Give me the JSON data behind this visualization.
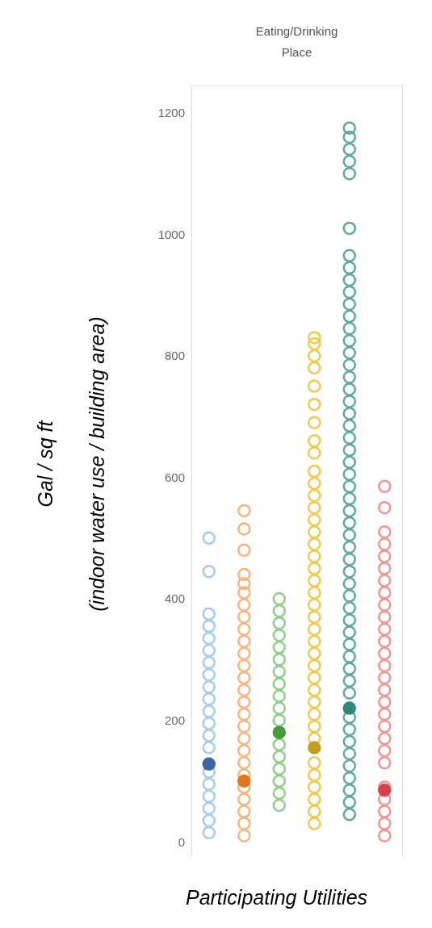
{
  "chart_data": {
    "type": "scatter",
    "title": "Eating/Drinking Place",
    "xlabel": "Participating Utilities",
    "ylabel": "Gal / sq ft\n(indoor water use / building area)",
    "categories": [
      null,
      null,
      null,
      null,
      null,
      null
    ],
    "ylim": [
      -25,
      1245
    ],
    "yticks": [
      0,
      200,
      400,
      600,
      800,
      1000,
      1200
    ],
    "tick_labels": "y",
    "grid": false,
    "legend": false,
    "marker": "circle",
    "series": [
      {
        "colors": [
          "#a8cbea",
          "#f8b47c",
          "#8ccf86",
          "#f3c94a",
          "#5eaaa0",
          "#f59292"
        ],
        "values": [
          15,
          10,
          60,
          30,
          45,
          10
        ]
      },
      {
        "colors": [
          "#a8cbea",
          "#f8b47c",
          "#8ccf86",
          "#f3c94a",
          "#5eaaa0",
          "#f59292"
        ],
        "values": [
          35,
          30,
          80,
          50,
          65,
          30
        ]
      },
      {
        "colors": [
          "#a8cbea",
          "#f8b47c",
          "#8ccf86",
          "#f3c94a",
          "#5eaaa0",
          "#f59292"
        ],
        "values": [
          55,
          50,
          100,
          70,
          85,
          50
        ]
      },
      {
        "colors": [
          "#a8cbea",
          "#f8b47c",
          "#8ccf86",
          "#f3c94a",
          "#5eaaa0",
          "#f59292"
        ],
        "values": [
          75,
          70,
          120,
          90,
          105,
          70
        ]
      },
      {
        "colors": [
          "#a8cbea",
          "#f8b47c",
          "#8ccf86",
          "#f3c94a",
          "#5eaaa0",
          "#f59292"
        ],
        "values": [
          95,
          90,
          140,
          110,
          125,
          90
        ]
      },
      {
        "colors": [
          "#a8cbea",
          "#f8b47c",
          "#8ccf86",
          "#f3c94a",
          "#5eaaa0",
          "#f59292"
        ],
        "values": [
          115,
          110,
          160,
          130,
          145,
          null
        ]
      },
      {
        "colors": [
          "#a8cbea",
          "#f8b47c",
          "#8ccf86",
          "#f3c94a",
          "#5eaaa0",
          "#f59292"
        ],
        "values": [
          null,
          130,
          null,
          null,
          165,
          130
        ]
      },
      {
        "colors": [
          "#a8cbea",
          "#f8b47c",
          "#8ccf86",
          "#f3c94a",
          "#5eaaa0",
          "#f59292"
        ],
        "values": [
          155,
          150,
          200,
          170,
          185,
          150
        ]
      },
      {
        "colors": [
          "#a8cbea",
          "#f8b47c",
          "#8ccf86",
          "#f3c94a",
          "#5eaaa0",
          "#f59292"
        ],
        "values": [
          175,
          170,
          220,
          190,
          205,
          170
        ]
      },
      {
        "colors": [
          "#a8cbea",
          "#f8b47c",
          "#8ccf86",
          "#f3c94a",
          "#5eaaa0",
          "#f59292"
        ],
        "values": [
          195,
          190,
          240,
          210,
          null,
          190
        ]
      },
      {
        "colors": [
          "#a8cbea",
          "#f8b47c",
          "#8ccf86",
          "#f3c94a",
          "#5eaaa0",
          "#f59292"
        ],
        "values": [
          215,
          210,
          260,
          230,
          245,
          210
        ]
      },
      {
        "colors": [
          "#a8cbea",
          "#f8b47c",
          "#8ccf86",
          "#f3c94a",
          "#5eaaa0",
          "#f59292"
        ],
        "values": [
          235,
          230,
          280,
          250,
          265,
          230
        ]
      },
      {
        "colors": [
          "#a8cbea",
          "#f8b47c",
          "#8ccf86",
          "#f3c94a",
          "#5eaaa0",
          "#f59292"
        ],
        "values": [
          255,
          250,
          300,
          270,
          285,
          250
        ]
      },
      {
        "colors": [
          "#a8cbea",
          "#f8b47c",
          "#8ccf86",
          "#f3c94a",
          "#5eaaa0",
          "#f59292"
        ],
        "values": [
          275,
          270,
          320,
          290,
          305,
          270
        ]
      },
      {
        "colors": [
          "#a8cbea",
          "#f8b47c",
          "#8ccf86",
          "#f3c94a",
          "#5eaaa0",
          "#f59292"
        ],
        "values": [
          295,
          290,
          340,
          310,
          325,
          290
        ]
      },
      {
        "colors": [
          "#a8cbea",
          "#f8b47c",
          "#8ccf86",
          "#f3c94a",
          "#5eaaa0",
          "#f59292"
        ],
        "values": [
          315,
          310,
          360,
          330,
          345,
          310
        ]
      },
      {
        "colors": [
          "#a8cbea",
          "#f8b47c",
          "#8ccf86",
          "#f3c94a",
          "#5eaaa0",
          "#f59292"
        ],
        "values": [
          335,
          330,
          380,
          350,
          365,
          330
        ]
      },
      {
        "colors": [
          "#a8cbea",
          "#f8b47c",
          "#8ccf86",
          "#f3c94a",
          "#5eaaa0",
          "#f59292"
        ],
        "values": [
          355,
          350,
          400,
          370,
          385,
          350
        ]
      },
      {
        "colors": [
          "#a8cbea",
          "#f8b47c",
          "#8ccf86",
          "#f3c94a",
          "#5eaaa0",
          "#f59292"
        ],
        "values": [
          375,
          370,
          null,
          390,
          405,
          370
        ]
      },
      {
        "colors": [
          "#a8cbea",
          "#f8b47c",
          "#8ccf86",
          "#f3c94a",
          "#5eaaa0",
          "#f59292"
        ],
        "values": [
          445,
          390,
          null,
          410,
          425,
          390
        ]
      },
      {
        "colors": [
          "#a8cbea",
          "#f8b47c",
          "#8ccf86",
          "#f3c94a",
          "#5eaaa0",
          "#f59292"
        ],
        "values": [
          500,
          410,
          null,
          430,
          445,
          410
        ]
      },
      {
        "colors": [
          "#a8cbea",
          "#f8b47c",
          "#8ccf86",
          "#f3c94a",
          "#5eaaa0",
          "#f59292"
        ],
        "values": [
          null,
          425,
          null,
          450,
          465,
          430
        ]
      },
      {
        "colors": [
          "#a8cbea",
          "#f8b47c",
          "#8ccf86",
          "#f3c94a",
          "#5eaaa0",
          "#f59292"
        ],
        "values": [
          null,
          440,
          null,
          470,
          485,
          450
        ]
      },
      {
        "colors": [
          "#a8cbea",
          "#f8b47c",
          "#8ccf86",
          "#f3c94a",
          "#5eaaa0",
          "#f59292"
        ],
        "values": [
          null,
          480,
          null,
          490,
          505,
          470
        ]
      },
      {
        "colors": [
          "#a8cbea",
          "#f8b47c",
          "#8ccf86",
          "#f3c94a",
          "#5eaaa0",
          "#f59292"
        ],
        "values": [
          null,
          515,
          null,
          510,
          525,
          490
        ]
      },
      {
        "colors": [
          "#a8cbea",
          "#f8b47c",
          "#8ccf86",
          "#f3c94a",
          "#5eaaa0",
          "#f59292"
        ],
        "values": [
          null,
          545,
          null,
          530,
          545,
          510
        ]
      },
      {
        "colors": [
          "#a8cbea",
          "#f8b47c",
          "#8ccf86",
          "#f3c94a",
          "#5eaaa0",
          "#f59292"
        ],
        "values": [
          null,
          null,
          null,
          550,
          565,
          550
        ]
      },
      {
        "colors": [
          "#a8cbea",
          "#f8b47c",
          "#8ccf86",
          "#f3c94a",
          "#5eaaa0",
          "#f59292"
        ],
        "values": [
          null,
          null,
          null,
          570,
          585,
          585
        ]
      },
      {
        "colors": [
          "#a8cbea",
          "#f8b47c",
          "#8ccf86",
          "#f3c94a",
          "#5eaaa0",
          "#f59292"
        ],
        "values": [
          null,
          null,
          null,
          590,
          605,
          null
        ]
      },
      {
        "colors": [
          "#a8cbea",
          "#f8b47c",
          "#8ccf86",
          "#f3c94a",
          "#5eaaa0",
          "#f59292"
        ],
        "values": [
          null,
          null,
          null,
          610,
          625,
          null
        ]
      },
      {
        "colors": [
          "#a8cbea",
          "#f8b47c",
          "#8ccf86",
          "#f3c94a",
          "#5eaaa0",
          "#f59292"
        ],
        "values": [
          null,
          null,
          null,
          640,
          645,
          null
        ]
      },
      {
        "colors": [
          "#a8cbea",
          "#f8b47c",
          "#8ccf86",
          "#f3c94a",
          "#5eaaa0",
          "#f59292"
        ],
        "values": [
          null,
          null,
          null,
          660,
          665,
          null
        ]
      },
      {
        "colors": [
          "#a8cbea",
          "#f8b47c",
          "#8ccf86",
          "#f3c94a",
          "#5eaaa0",
          "#f59292"
        ],
        "values": [
          null,
          null,
          null,
          690,
          685,
          null
        ]
      },
      {
        "colors": [
          "#a8cbea",
          "#f8b47c",
          "#8ccf86",
          "#f3c94a",
          "#5eaaa0",
          "#f59292"
        ],
        "values": [
          null,
          null,
          null,
          720,
          705,
          null
        ]
      },
      {
        "colors": [
          "#a8cbea",
          "#f8b47c",
          "#8ccf86",
          "#f3c94a",
          "#5eaaa0",
          "#f59292"
        ],
        "values": [
          null,
          null,
          null,
          750,
          725,
          null
        ]
      },
      {
        "colors": [
          "#a8cbea",
          "#f8b47c",
          "#8ccf86",
          "#f3c94a",
          "#5eaaa0",
          "#f59292"
        ],
        "values": [
          null,
          null,
          null,
          780,
          745,
          null
        ]
      },
      {
        "colors": [
          "#a8cbea",
          "#f8b47c",
          "#8ccf86",
          "#f3c94a",
          "#5eaaa0",
          "#f59292"
        ],
        "values": [
          null,
          null,
          null,
          800,
          765,
          null
        ]
      },
      {
        "colors": [
          "#a8cbea",
          "#f8b47c",
          "#8ccf86",
          "#f3c94a",
          "#5eaaa0",
          "#f59292"
        ],
        "values": [
          null,
          null,
          null,
          820,
          785,
          null
        ]
      },
      {
        "colors": [
          "#a8cbea",
          "#f8b47c",
          "#8ccf86",
          "#f3c94a",
          "#5eaaa0",
          "#f59292"
        ],
        "values": [
          null,
          null,
          null,
          830,
          805,
          null
        ]
      },
      {
        "colors": [
          "#a8cbea",
          "#f8b47c",
          "#8ccf86",
          "#f3c94a",
          "#5eaaa0",
          "#f59292"
        ],
        "values": [
          null,
          null,
          null,
          null,
          825,
          null
        ]
      },
      {
        "colors": [
          "#a8cbea",
          "#f8b47c",
          "#8ccf86",
          "#f3c94a",
          "#5eaaa0",
          "#f59292"
        ],
        "values": [
          null,
          null,
          null,
          null,
          845,
          null
        ]
      },
      {
        "colors": [
          "#a8cbea",
          "#f8b47c",
          "#8ccf86",
          "#f3c94a",
          "#5eaaa0",
          "#f59292"
        ],
        "values": [
          null,
          null,
          null,
          null,
          865,
          null
        ]
      },
      {
        "colors": [
          "#a8cbea",
          "#f8b47c",
          "#8ccf86",
          "#f3c94a",
          "#5eaaa0",
          "#f59292"
        ],
        "values": [
          null,
          null,
          null,
          null,
          885,
          null
        ]
      },
      {
        "colors": [
          "#a8cbea",
          "#f8b47c",
          "#8ccf86",
          "#f3c94a",
          "#5eaaa0",
          "#f59292"
        ],
        "values": [
          null,
          null,
          null,
          null,
          905,
          null
        ]
      },
      {
        "colors": [
          "#a8cbea",
          "#f8b47c",
          "#8ccf86",
          "#f3c94a",
          "#5eaaa0",
          "#f59292"
        ],
        "values": [
          null,
          null,
          null,
          null,
          925,
          null
        ]
      },
      {
        "colors": [
          "#a8cbea",
          "#f8b47c",
          "#8ccf86",
          "#f3c94a",
          "#5eaaa0",
          "#f59292"
        ],
        "values": [
          null,
          null,
          null,
          null,
          945,
          null
        ]
      },
      {
        "colors": [
          "#a8cbea",
          "#f8b47c",
          "#8ccf86",
          "#f3c94a",
          "#5eaaa0",
          "#f59292"
        ],
        "values": [
          null,
          null,
          null,
          null,
          965,
          null
        ]
      },
      {
        "colors": [
          "#a8cbea",
          "#f8b47c",
          "#8ccf86",
          "#f3c94a",
          "#5eaaa0",
          "#f59292"
        ],
        "values": [
          null,
          null,
          null,
          null,
          1010,
          null
        ]
      },
      {
        "colors": [
          "#a8cbea",
          "#f8b47c",
          "#8ccf86",
          "#f3c94a",
          "#5eaaa0",
          "#f59292"
        ],
        "values": [
          null,
          null,
          null,
          null,
          1100,
          null
        ]
      },
      {
        "colors": [
          "#a8cbea",
          "#f8b47c",
          "#8ccf86",
          "#f3c94a",
          "#5eaaa0",
          "#f59292"
        ],
        "values": [
          null,
          null,
          null,
          null,
          1120,
          null
        ]
      },
      {
        "colors": [
          "#a8cbea",
          "#f8b47c",
          "#8ccf86",
          "#f3c94a",
          "#5eaaa0",
          "#f59292"
        ],
        "values": [
          null,
          null,
          null,
          null,
          1140,
          null
        ]
      },
      {
        "colors": [
          "#a8cbea",
          "#f8b47c",
          "#8ccf86",
          "#f3c94a",
          "#5eaaa0",
          "#f59292"
        ],
        "values": [
          null,
          null,
          null,
          null,
          1160,
          null
        ]
      },
      {
        "colors": [
          "#a8cbea",
          "#f8b47c",
          "#8ccf86",
          "#f3c94a",
          "#5eaaa0",
          "#f59292"
        ],
        "values": [
          null,
          null,
          null,
          null,
          1175,
          null
        ]
      },
      {
        "marker": "circle",
        "colors": [
          "#3d67a3",
          "#e07a1c",
          "#4a9a3e",
          "#c39f1c",
          "#2e877b",
          "#d8404c"
        ],
        "values": [
          128,
          100,
          180,
          155,
          220,
          85
        ]
      }
    ]
  }
}
